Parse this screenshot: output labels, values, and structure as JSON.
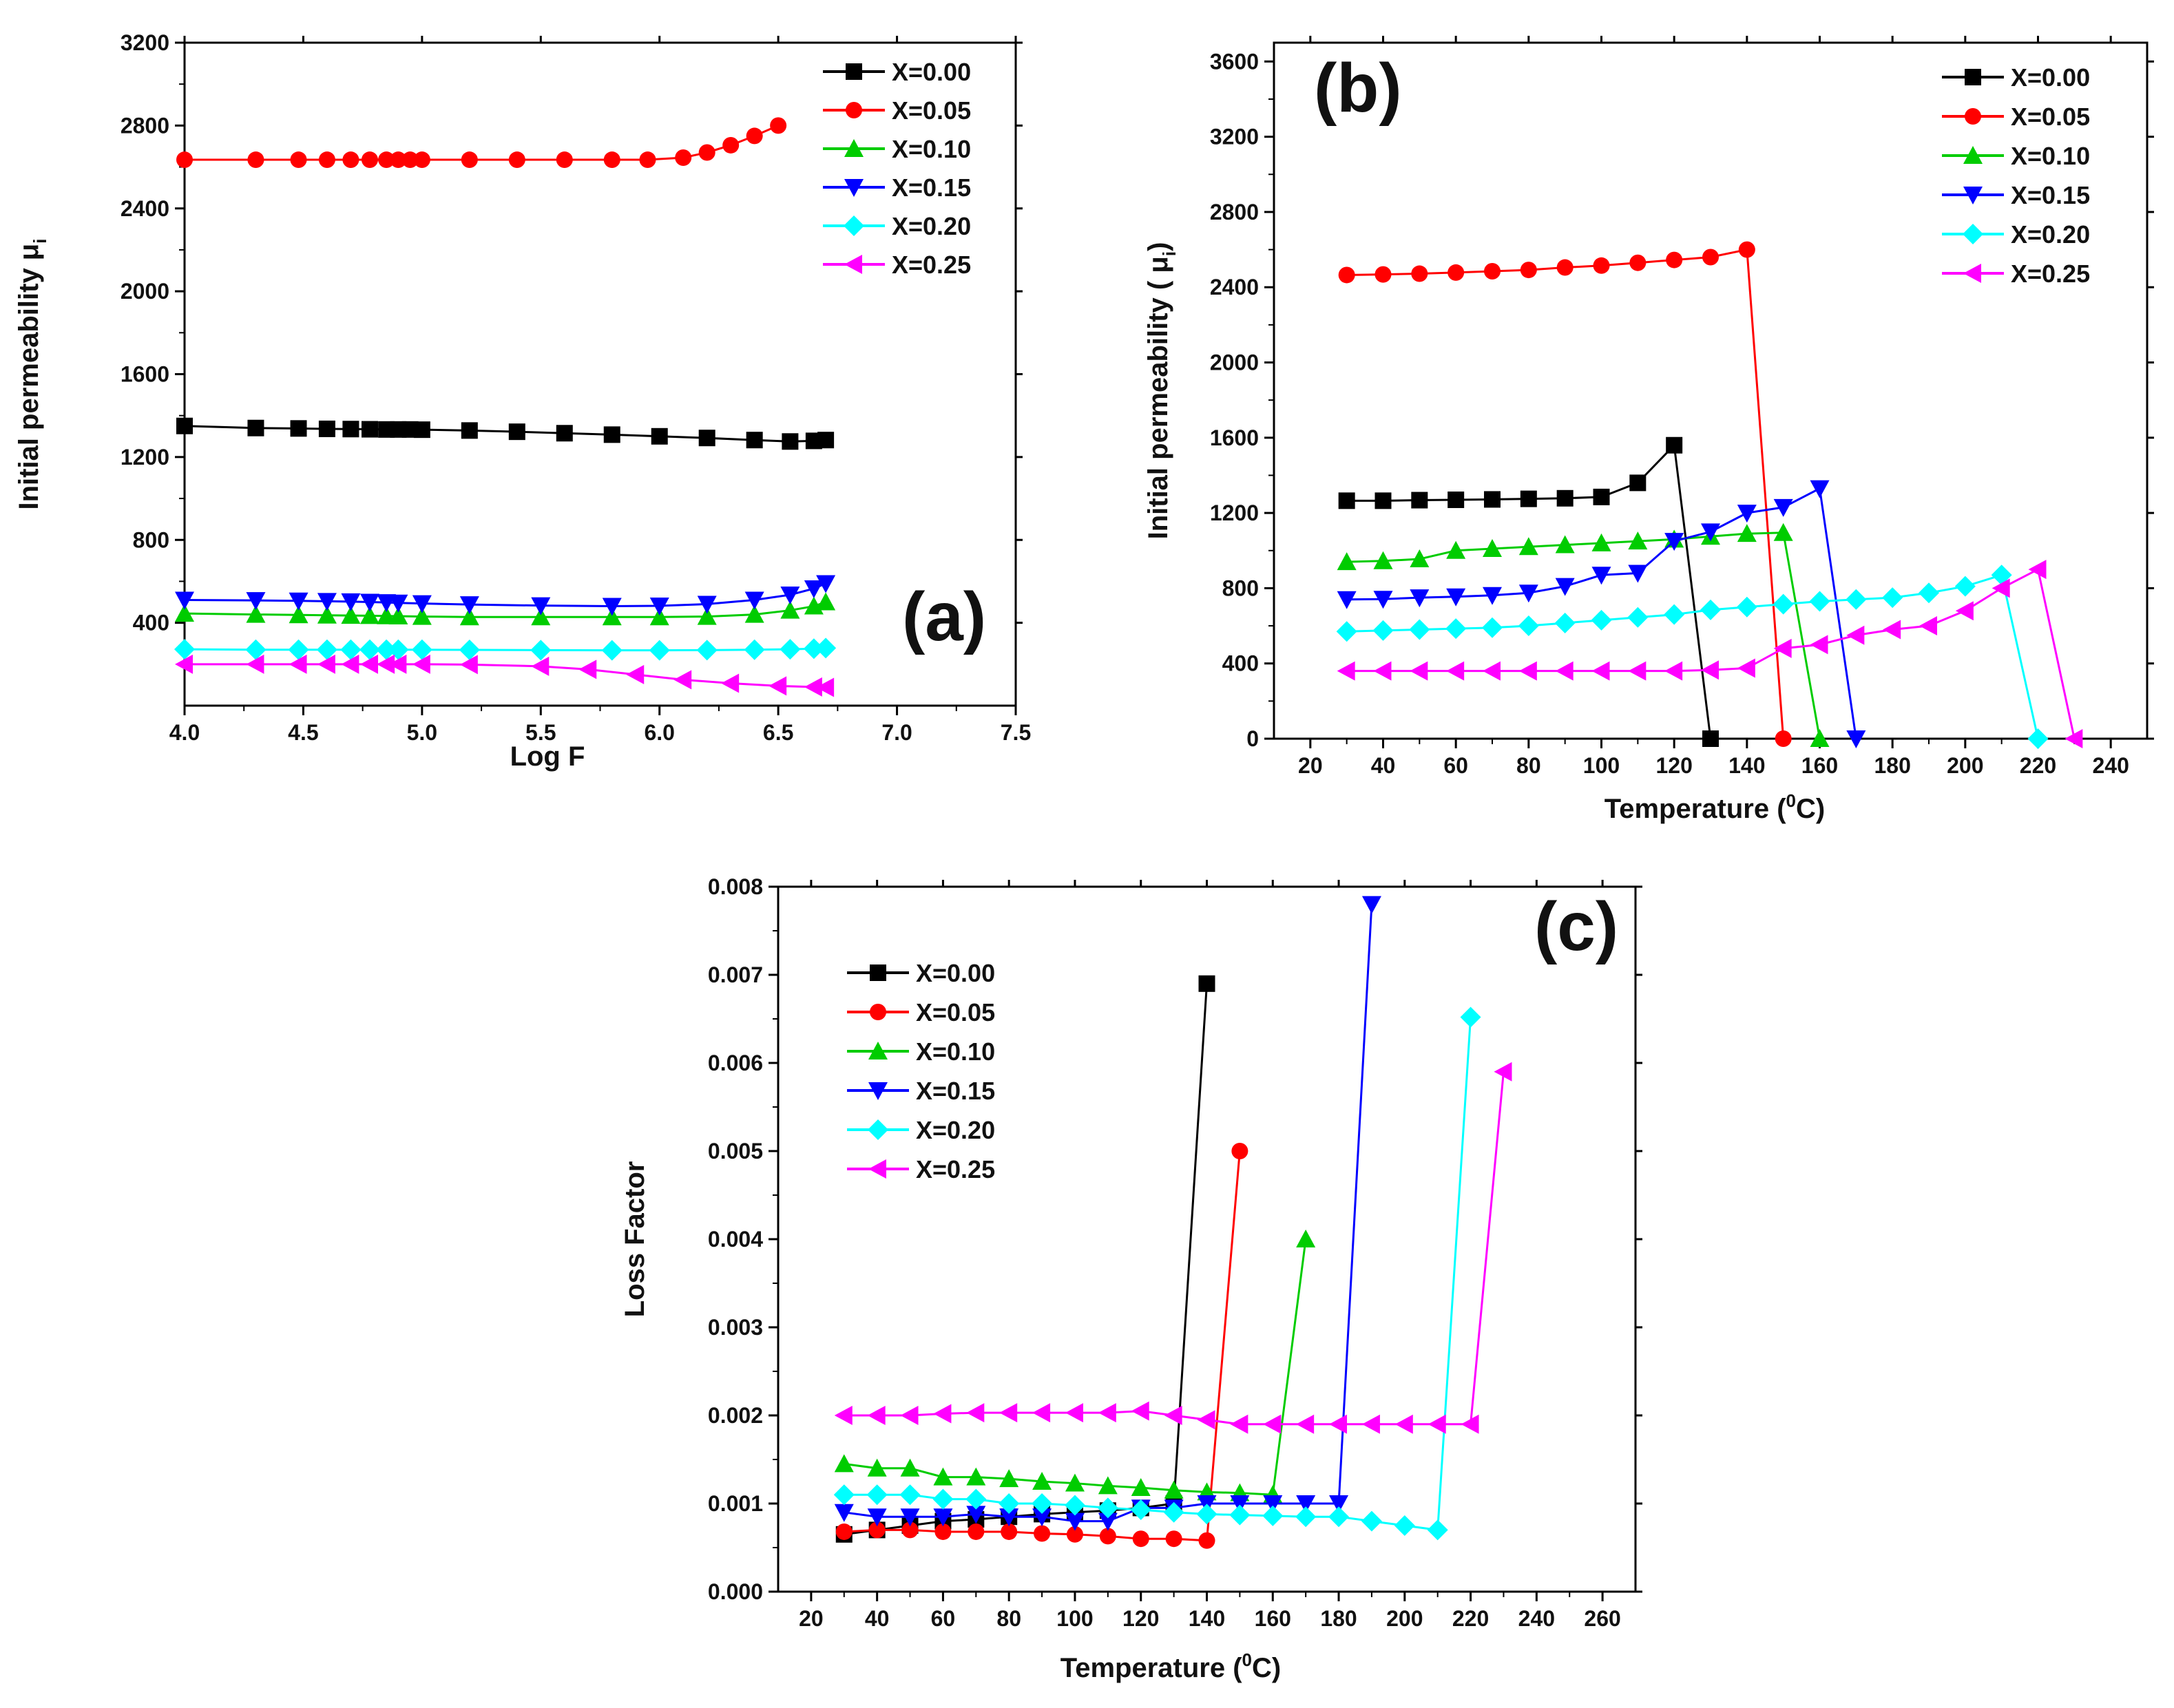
{
  "chart_data": [
    {
      "type": "line",
      "panel_label": "(a)",
      "xlabel": "Log F",
      "ylabel": "Initial permeability",
      "ylabel_sub": "i",
      "xlim": [
        4.0,
        7.5
      ],
      "ylim": [
        0,
        3200
      ],
      "xticks": [
        "4.0",
        "4.5",
        "5.0",
        "5.5",
        "6.0",
        "6.5",
        "7.0",
        "7.5"
      ],
      "yticks": [
        "400",
        "800",
        "1200",
        "1600",
        "2000",
        "2400",
        "2800",
        "3200"
      ],
      "legend_position": "top-right",
      "series": [
        {
          "name": "X=0.00",
          "color": "#000000",
          "marker": "square",
          "x": [
            4.0,
            4.3,
            4.48,
            4.6,
            4.7,
            4.78,
            4.85,
            4.9,
            4.95,
            5.0,
            5.2,
            5.4,
            5.6,
            5.8,
            6.0,
            6.2,
            6.4,
            6.55,
            6.65,
            6.7
          ],
          "y": [
            1350,
            1340,
            1338,
            1336,
            1335,
            1334,
            1333,
            1333,
            1333,
            1332,
            1328,
            1322,
            1315,
            1308,
            1300,
            1292,
            1282,
            1275,
            1278,
            1282
          ]
        },
        {
          "name": "X=0.05",
          "color": "#ff0000",
          "marker": "circle",
          "x": [
            4.0,
            4.3,
            4.48,
            4.6,
            4.7,
            4.78,
            4.85,
            4.9,
            4.95,
            5.0,
            5.2,
            5.4,
            5.6,
            5.8,
            5.95,
            6.1,
            6.2,
            6.3,
            6.4,
            6.5
          ],
          "y": [
            2635,
            2635,
            2635,
            2635,
            2635,
            2635,
            2635,
            2635,
            2635,
            2635,
            2635,
            2635,
            2635,
            2635,
            2635,
            2645,
            2670,
            2705,
            2750,
            2800
          ]
        },
        {
          "name": "X=0.10",
          "color": "#00cc00",
          "marker": "triangle-up",
          "x": [
            4.0,
            4.3,
            4.48,
            4.6,
            4.7,
            4.78,
            4.85,
            4.9,
            5.0,
            5.2,
            5.5,
            5.8,
            6.0,
            6.2,
            6.4,
            6.55,
            6.65,
            6.7
          ],
          "y": [
            445,
            440,
            438,
            436,
            435,
            434,
            433,
            432,
            430,
            428,
            428,
            428,
            428,
            430,
            440,
            460,
            480,
            500
          ]
        },
        {
          "name": "X=0.15",
          "color": "#0000ff",
          "marker": "triangle-down",
          "x": [
            4.0,
            4.3,
            4.48,
            4.6,
            4.7,
            4.78,
            4.85,
            4.9,
            5.0,
            5.2,
            5.5,
            5.8,
            6.0,
            6.2,
            6.4,
            6.55,
            6.65,
            6.7
          ],
          "y": [
            510,
            508,
            506,
            504,
            502,
            500,
            498,
            496,
            493,
            488,
            483,
            480,
            482,
            490,
            510,
            535,
            565,
            590
          ]
        },
        {
          "name": "X=0.20",
          "color": "#00ffff",
          "marker": "diamond",
          "x": [
            4.0,
            4.3,
            4.48,
            4.6,
            4.7,
            4.78,
            4.85,
            4.9,
            5.0,
            5.2,
            5.5,
            5.8,
            6.0,
            6.2,
            6.4,
            6.55,
            6.65,
            6.7
          ],
          "y": [
            272,
            270,
            270,
            270,
            270,
            270,
            270,
            270,
            270,
            269,
            268,
            267,
            267,
            268,
            270,
            272,
            275,
            278
          ]
        },
        {
          "name": "X=0.25",
          "color": "#ff00ff",
          "marker": "triangle-left",
          "x": [
            4.0,
            4.3,
            4.48,
            4.6,
            4.7,
            4.78,
            4.85,
            4.9,
            5.0,
            5.2,
            5.5,
            5.7,
            5.9,
            6.1,
            6.3,
            6.5,
            6.65,
            6.7
          ],
          "y": [
            200,
            200,
            200,
            200,
            200,
            200,
            200,
            200,
            200,
            198,
            190,
            175,
            150,
            125,
            108,
            95,
            90,
            88
          ]
        }
      ]
    },
    {
      "type": "line",
      "panel_label": "(b)",
      "xlabel": "Temperature (",
      "xlabel_sup": "0",
      "xlabel_end": "C)",
      "ylabel": "Initial permeability (",
      "ylabel_sub": "i",
      "ylabel_end": ")",
      "xlim": [
        10,
        250
      ],
      "ylim": [
        0,
        3700
      ],
      "xticks": [
        "20",
        "40",
        "60",
        "80",
        "100",
        "120",
        "140",
        "160",
        "180",
        "200",
        "220",
        "240"
      ],
      "yticks": [
        "0",
        "400",
        "800",
        "1200",
        "1600",
        "2000",
        "2400",
        "2800",
        "3200",
        "3600"
      ],
      "legend_position": "top-right",
      "series": [
        {
          "name": "X=0.00",
          "color": "#000000",
          "marker": "square",
          "x": [
            30,
            40,
            50,
            60,
            70,
            80,
            90,
            100,
            110,
            120,
            130
          ],
          "y": [
            1265,
            1265,
            1268,
            1270,
            1272,
            1275,
            1278,
            1285,
            1360,
            1560,
            0
          ]
        },
        {
          "name": "X=0.05",
          "color": "#ff0000",
          "marker": "circle",
          "x": [
            30,
            40,
            50,
            60,
            70,
            80,
            90,
            100,
            110,
            120,
            130,
            140,
            150
          ],
          "y": [
            2465,
            2468,
            2472,
            2478,
            2485,
            2492,
            2505,
            2515,
            2530,
            2545,
            2560,
            2600,
            0
          ]
        },
        {
          "name": "X=0.10",
          "color": "#00cc00",
          "marker": "triangle-up",
          "x": [
            30,
            40,
            50,
            60,
            70,
            80,
            90,
            100,
            110,
            120,
            130,
            140,
            150,
            160
          ],
          "y": [
            940,
            945,
            955,
            1000,
            1010,
            1020,
            1030,
            1040,
            1050,
            1060,
            1075,
            1090,
            1095,
            0
          ]
        },
        {
          "name": "X=0.15",
          "color": "#0000ff",
          "marker": "triangle-down",
          "x": [
            30,
            40,
            50,
            60,
            70,
            80,
            90,
            100,
            110,
            120,
            130,
            140,
            150,
            160,
            170
          ],
          "y": [
            740,
            742,
            750,
            755,
            762,
            775,
            810,
            870,
            880,
            1050,
            1100,
            1200,
            1230,
            1330,
            0
          ]
        },
        {
          "name": "X=0.20",
          "color": "#00ffff",
          "marker": "diamond",
          "x": [
            30,
            40,
            50,
            60,
            70,
            80,
            90,
            100,
            110,
            120,
            130,
            140,
            150,
            160,
            170,
            180,
            190,
            200,
            210,
            220
          ],
          "y": [
            570,
            575,
            580,
            585,
            590,
            600,
            615,
            630,
            645,
            660,
            685,
            700,
            715,
            730,
            740,
            750,
            775,
            810,
            870,
            0
          ]
        },
        {
          "name": "X=0.25",
          "color": "#ff00ff",
          "marker": "triangle-left",
          "x": [
            30,
            40,
            50,
            60,
            70,
            80,
            90,
            100,
            110,
            120,
            130,
            140,
            150,
            160,
            170,
            180,
            190,
            200,
            210,
            220,
            230
          ],
          "y": [
            360,
            360,
            360,
            360,
            360,
            360,
            360,
            360,
            360,
            360,
            365,
            375,
            480,
            500,
            550,
            580,
            600,
            680,
            800,
            900,
            0
          ]
        }
      ]
    },
    {
      "type": "line",
      "panel_label": "(c)",
      "xlabel": "Temperature (",
      "xlabel_sup": "0",
      "xlabel_end": "C)",
      "ylabel": "Loss Factor",
      "xlim": [
        10,
        270
      ],
      "ylim": [
        0.0,
        0.008
      ],
      "xticks": [
        "20",
        "40",
        "60",
        "80",
        "100",
        "120",
        "140",
        "160",
        "180",
        "200",
        "220",
        "240",
        "260"
      ],
      "yticks": [
        "0.000",
        "0.001",
        "0.002",
        "0.003",
        "0.004",
        "0.005",
        "0.006",
        "0.007",
        "0.008"
      ],
      "legend_position": "top-left",
      "series": [
        {
          "name": "X=0.00",
          "color": "#000000",
          "marker": "square",
          "x": [
            30,
            40,
            50,
            60,
            70,
            80,
            90,
            100,
            110,
            120,
            130,
            140
          ],
          "y": [
            0.00065,
            0.0007,
            0.00075,
            0.0008,
            0.00082,
            0.00085,
            0.00088,
            0.0009,
            0.00092,
            0.00095,
            0.001,
            0.0069
          ]
        },
        {
          "name": "X=0.05",
          "color": "#ff0000",
          "marker": "circle",
          "x": [
            30,
            40,
            50,
            60,
            70,
            80,
            90,
            100,
            110,
            120,
            130,
            140,
            150
          ],
          "y": [
            0.00068,
            0.0007,
            0.0007,
            0.00068,
            0.00068,
            0.00068,
            0.00066,
            0.00065,
            0.00063,
            0.0006,
            0.0006,
            0.00058,
            0.005
          ]
        },
        {
          "name": "X=0.10",
          "color": "#00cc00",
          "marker": "triangle-up",
          "x": [
            30,
            40,
            50,
            60,
            70,
            80,
            90,
            100,
            110,
            120,
            130,
            140,
            150,
            160,
            170
          ],
          "y": [
            0.00145,
            0.0014,
            0.0014,
            0.0013,
            0.0013,
            0.00128,
            0.00125,
            0.00123,
            0.0012,
            0.00118,
            0.00115,
            0.00113,
            0.00112,
            0.0011,
            0.004
          ]
        },
        {
          "name": "X=0.15",
          "color": "#0000ff",
          "marker": "triangle-down",
          "x": [
            30,
            40,
            50,
            60,
            70,
            80,
            90,
            100,
            110,
            120,
            130,
            140,
            150,
            160,
            170,
            180,
            190
          ],
          "y": [
            0.0009,
            0.00085,
            0.00085,
            0.00085,
            0.00088,
            0.00085,
            0.00085,
            0.0008,
            0.0008,
            0.00095,
            0.00095,
            0.001,
            0.001,
            0.001,
            0.001,
            0.001,
            0.0078
          ]
        },
        {
          "name": "X=0.20",
          "color": "#00ffff",
          "marker": "diamond",
          "x": [
            30,
            40,
            50,
            60,
            70,
            80,
            90,
            100,
            110,
            120,
            130,
            140,
            150,
            160,
            170,
            180,
            190,
            200,
            210,
            220
          ],
          "y": [
            0.0011,
            0.0011,
            0.0011,
            0.00105,
            0.00105,
            0.001,
            0.001,
            0.00098,
            0.00095,
            0.00093,
            0.0009,
            0.00088,
            0.00087,
            0.00086,
            0.00085,
            0.00085,
            0.0008,
            0.00075,
            0.0007,
            0.00652
          ]
        },
        {
          "name": "X=0.25",
          "color": "#ff00ff",
          "marker": "triangle-left",
          "x": [
            30,
            40,
            50,
            60,
            70,
            80,
            90,
            100,
            110,
            120,
            130,
            140,
            150,
            160,
            170,
            180,
            190,
            200,
            210,
            220,
            230
          ],
          "y": [
            0.002,
            0.002,
            0.002,
            0.00202,
            0.00203,
            0.00203,
            0.00203,
            0.00203,
            0.00203,
            0.00205,
            0.002,
            0.00195,
            0.0019,
            0.0019,
            0.0019,
            0.0019,
            0.0019,
            0.0019,
            0.0019,
            0.0019,
            0.0059
          ]
        }
      ]
    }
  ]
}
